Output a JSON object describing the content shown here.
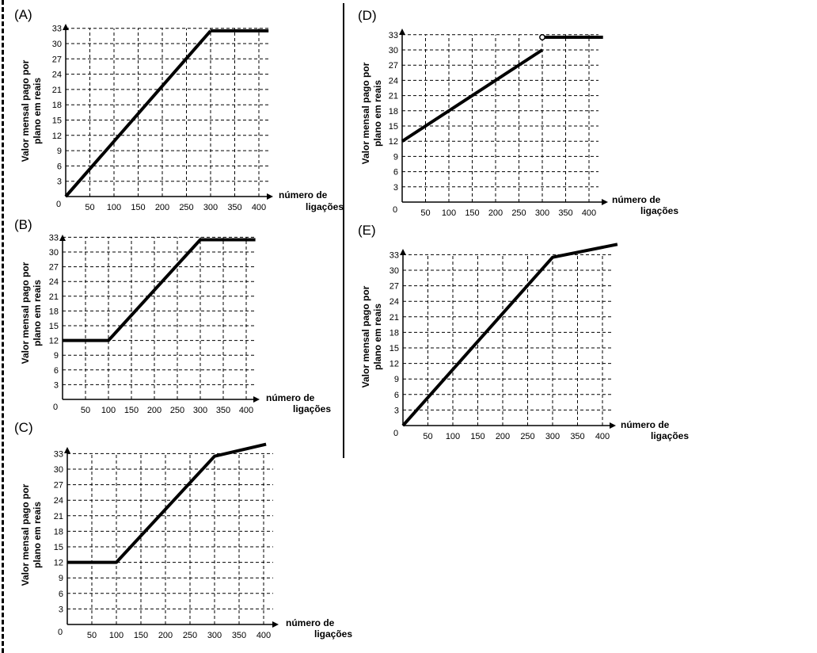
{
  "charts": [
    {
      "label": "(A)",
      "ylabel_line1": "Valor mensal pago por",
      "ylabel_line2": "plano em reais",
      "xlabel_line1": "número de",
      "xlabel_line2": "ligações",
      "origin_label": "0",
      "x_ticks": [
        50,
        100,
        150,
        200,
        250,
        300,
        350,
        400
      ],
      "y_ticks": [
        3,
        6,
        9,
        12,
        15,
        18,
        21,
        24,
        27,
        30,
        33
      ],
      "segments": [
        {
          "points": [
            [
              0,
              0
            ],
            [
              300,
              32.5
            ]
          ]
        },
        {
          "points": [
            [
              300,
              32.5
            ],
            [
              420,
              32.5
            ]
          ]
        }
      ],
      "open_circles": []
    },
    {
      "label": "(B)",
      "ylabel_line1": "Valor mensal pago por",
      "ylabel_line2": "plano em reais",
      "xlabel_line1": "número de",
      "xlabel_line2": "ligações",
      "origin_label": "0",
      "x_ticks": [
        50,
        100,
        150,
        200,
        250,
        300,
        350,
        400
      ],
      "y_ticks": [
        3,
        6,
        9,
        12,
        15,
        18,
        21,
        24,
        27,
        30,
        33
      ],
      "segments": [
        {
          "points": [
            [
              0,
              12
            ],
            [
              100,
              12
            ],
            [
              300,
              32.5
            ],
            [
              420,
              32.5
            ]
          ]
        }
      ],
      "open_circles": []
    },
    {
      "label": "(C)",
      "ylabel_line1": "Valor mensal pago por",
      "ylabel_line2": "plano em reais",
      "xlabel_line1": "número de",
      "xlabel_line2": "ligações",
      "origin_label": "0",
      "x_ticks": [
        50,
        100,
        150,
        200,
        250,
        300,
        350,
        400
      ],
      "y_ticks": [
        3,
        6,
        9,
        12,
        15,
        18,
        21,
        24,
        27,
        30,
        33
      ],
      "segments": [
        {
          "points": [
            [
              0,
              12
            ],
            [
              100,
              12
            ],
            [
              300,
              32.5
            ],
            [
              405,
              34.8
            ]
          ]
        }
      ],
      "open_circles": []
    },
    {
      "label": "(D)",
      "ylabel_line1": "Valor mensal pago por",
      "ylabel_line2": "plano em reais",
      "xlabel_line1": "número de",
      "xlabel_line2": "ligações",
      "origin_label": "0",
      "x_ticks": [
        50,
        100,
        150,
        200,
        250,
        300,
        350,
        400
      ],
      "y_ticks": [
        3,
        6,
        9,
        12,
        15,
        18,
        21,
        24,
        27,
        30,
        33
      ],
      "segments": [
        {
          "points": [
            [
              0,
              12
            ],
            [
              300,
              30
            ]
          ]
        },
        {
          "points": [
            [
              300,
              32.5
            ],
            [
              430,
              32.5
            ]
          ]
        }
      ],
      "open_circles": [
        [
          300,
          32.5
        ]
      ]
    },
    {
      "label": "(E)",
      "ylabel_line1": "Valor mensal pago por",
      "ylabel_line2": "plano em reais",
      "xlabel_line1": "número de",
      "xlabel_line2": "ligações",
      "origin_label": "0",
      "x_ticks": [
        50,
        100,
        150,
        200,
        250,
        300,
        350,
        400
      ],
      "y_ticks": [
        3,
        6,
        9,
        12,
        15,
        18,
        21,
        24,
        27,
        30,
        33
      ],
      "segments": [
        {
          "points": [
            [
              0,
              0
            ],
            [
              300,
              32.5
            ],
            [
              430,
              35
            ]
          ]
        }
      ],
      "open_circles": []
    }
  ],
  "chart_data": [
    {
      "type": "line",
      "title": "(A)",
      "xlabel": "número de ligações",
      "ylabel": "Valor mensal pago por plano em reais",
      "xlim": [
        0,
        400
      ],
      "ylim": [
        0,
        33
      ],
      "grid": true,
      "series": [
        {
          "x": [
            0,
            300,
            400
          ],
          "y": [
            0,
            32.5,
            32.5
          ]
        }
      ]
    },
    {
      "type": "line",
      "title": "(B)",
      "xlabel": "número de ligações",
      "ylabel": "Valor mensal pago por plano em reais",
      "xlim": [
        0,
        400
      ],
      "ylim": [
        0,
        33
      ],
      "grid": true,
      "series": [
        {
          "x": [
            0,
            100,
            300,
            400
          ],
          "y": [
            12,
            12,
            32.5,
            32.5
          ]
        }
      ]
    },
    {
      "type": "line",
      "title": "(C)",
      "xlabel": "número de ligações",
      "ylabel": "Valor mensal pago por plano em reais",
      "xlim": [
        0,
        400
      ],
      "ylim": [
        0,
        33
      ],
      "grid": true,
      "series": [
        {
          "x": [
            0,
            100,
            300,
            400
          ],
          "y": [
            12,
            12,
            32.5,
            34.8
          ]
        }
      ]
    },
    {
      "type": "line",
      "title": "(D)",
      "xlabel": "número de ligações",
      "ylabel": "Valor mensal pago por plano em reais",
      "xlim": [
        0,
        400
      ],
      "ylim": [
        0,
        33
      ],
      "grid": true,
      "series": [
        {
          "x": [
            0,
            300,
            300,
            400
          ],
          "y": [
            12,
            30,
            32.5,
            32.5
          ]
        }
      ]
    },
    {
      "type": "line",
      "title": "(E)",
      "xlabel": "número de ligações",
      "ylabel": "Valor mensal pago por plano em reais",
      "xlim": [
        0,
        400
      ],
      "ylim": [
        0,
        33
      ],
      "grid": true,
      "series": [
        {
          "x": [
            0,
            300,
            400
          ],
          "y": [
            0,
            32.5,
            35
          ]
        }
      ]
    }
  ]
}
